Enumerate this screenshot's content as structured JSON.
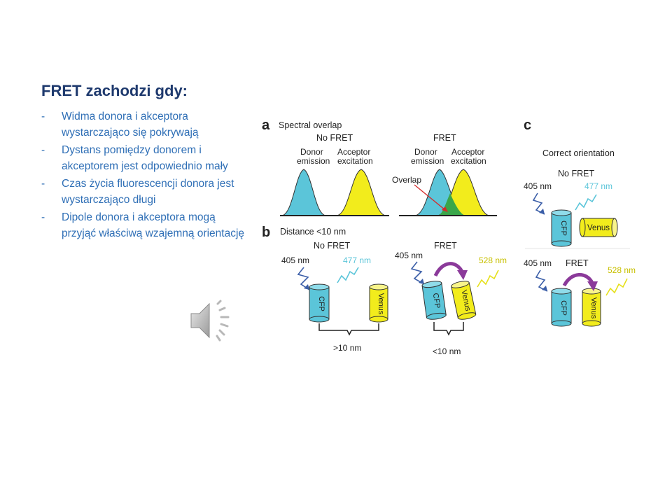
{
  "slide": {
    "title": "FRET zachodzi gdy:",
    "bullets": [
      "Widma donora i akceptora wystarczająco się pokrywają",
      "Dystans pomiędzy donorem i akceptorem jest odpowiednio mały",
      "Czas życia fluorescencji donora jest wystarczająco długi",
      "Dipole donora i akceptora mogą przyjąć właściwą wzajemną orientację"
    ],
    "bullet_marker": "-",
    "speaker_icon": "speaker-icon"
  },
  "figure": {
    "panel_a": {
      "letter": "a",
      "heading": "Spectral overlap",
      "no_fret": "No FRET",
      "fret": "FRET",
      "donor_l1": "Donor",
      "donor_l2": "emission",
      "acceptor_l1": "Acceptor",
      "acceptor_l2": "excitation",
      "overlap": "Overlap"
    },
    "panel_b": {
      "letter": "b",
      "heading": "Distance <10 nm",
      "no_fret": "No FRET",
      "fret": "FRET",
      "ex_405_left": "405 nm",
      "em_477": "477 nm",
      "ex_405_right": "405 nm",
      "em_528": "528 nm",
      "cfp": "CFP",
      "venus": "Venus",
      "dist_far": ">10 nm",
      "dist_near": "<10 nm"
    },
    "panel_c": {
      "letter": "c",
      "heading": "Correct orientation",
      "no_fret": "No FRET",
      "fret": "FRET",
      "ex_405_top": "405 nm",
      "em_477": "477 nm",
      "ex_405_bottom": "405 nm",
      "em_528": "528 nm",
      "cfp": "CFP",
      "venus": "Venus"
    },
    "colors": {
      "donor": "#5bc5d9",
      "acceptor": "#f2ec1c",
      "overlap": "#3aa64a",
      "arrow_purple": "#8b3a9a",
      "zig_blue": "#3b5ea8",
      "zig_cyan": "#5bc5d9",
      "zig_yellow": "#e6e01a",
      "arrow_red": "#d42a2a"
    }
  }
}
